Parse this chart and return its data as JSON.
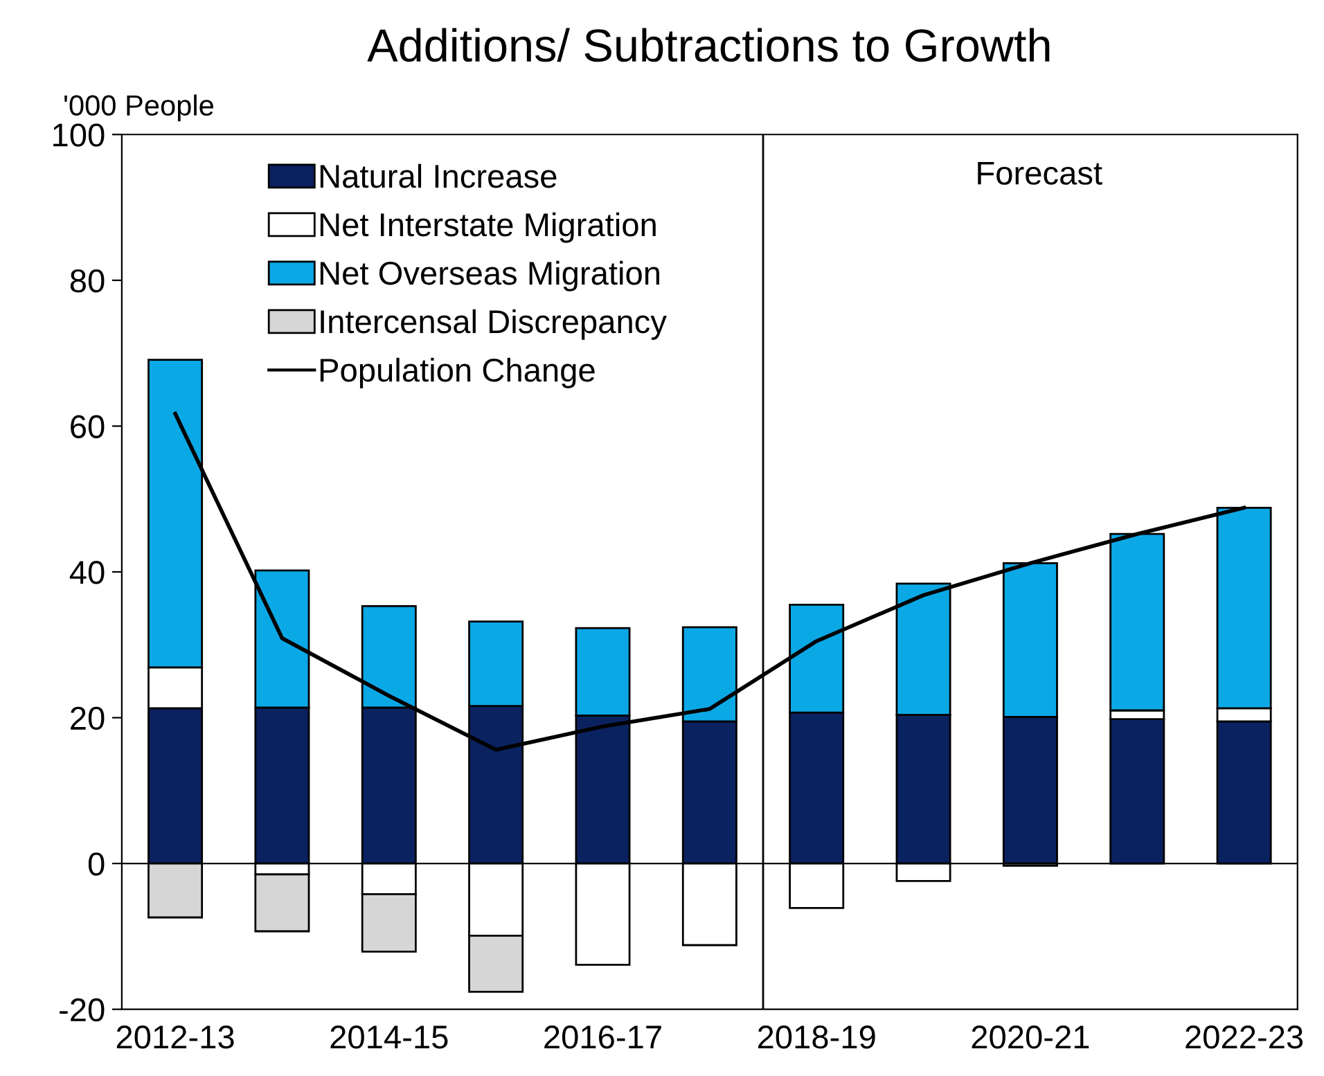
{
  "chart_data": {
    "type": "bar",
    "stacked": true,
    "title": "Additions/ Subtractions to Growth",
    "ylabel": "'000 People",
    "categories": [
      "2012-13",
      null,
      "2014-15",
      null,
      "2016-17",
      null,
      "2018-19",
      null,
      "2020-21",
      null,
      "2022-23"
    ],
    "series": [
      {
        "name": "Natural Increase",
        "color": "#0b2260",
        "values": [
          21.3,
          21.4,
          21.4,
          21.6,
          20.3,
          19.5,
          20.7,
          20.4,
          20.1,
          19.8,
          19.5
        ]
      },
      {
        "name": "Net Interstate Migration",
        "color": "#ffffff",
        "values": [
          5.6,
          -1.5,
          -4.2,
          -9.9,
          -13.9,
          -11.2,
          -6.1,
          -2.4,
          -0.3,
          1.2,
          1.8
        ]
      },
      {
        "name": "Net Overseas Migration",
        "color": "#0ba8e6",
        "values": [
          42.2,
          18.8,
          13.9,
          11.6,
          12.0,
          12.9,
          14.8,
          18.0,
          21.1,
          24.2,
          27.5
        ]
      },
      {
        "name": "Intercensal Discrepancy",
        "color": "#d6d6d6",
        "values": [
          -7.4,
          -7.8,
          -7.9,
          -7.7,
          null,
          null,
          null,
          null,
          null,
          null,
          null
        ]
      },
      {
        "name": "Population Change",
        "type": "line",
        "color": "#000000",
        "values": [
          61.7,
          30.9,
          23.0,
          15.6,
          18.8,
          21.2,
          30.5,
          36.8,
          41.2,
          45.2,
          48.8
        ]
      }
    ],
    "ylim": [
      -20,
      100
    ],
    "yticks": [
      -20,
      0,
      20,
      40,
      60,
      80,
      100
    ],
    "grid": false,
    "legend": "top left",
    "marker": "none",
    "line_style": "solid",
    "ref_lines": [
      {
        "axis": "x",
        "value": "2018-19",
        "color": "#000000"
      }
    ],
    "annotations": [
      "Forecast"
    ]
  }
}
